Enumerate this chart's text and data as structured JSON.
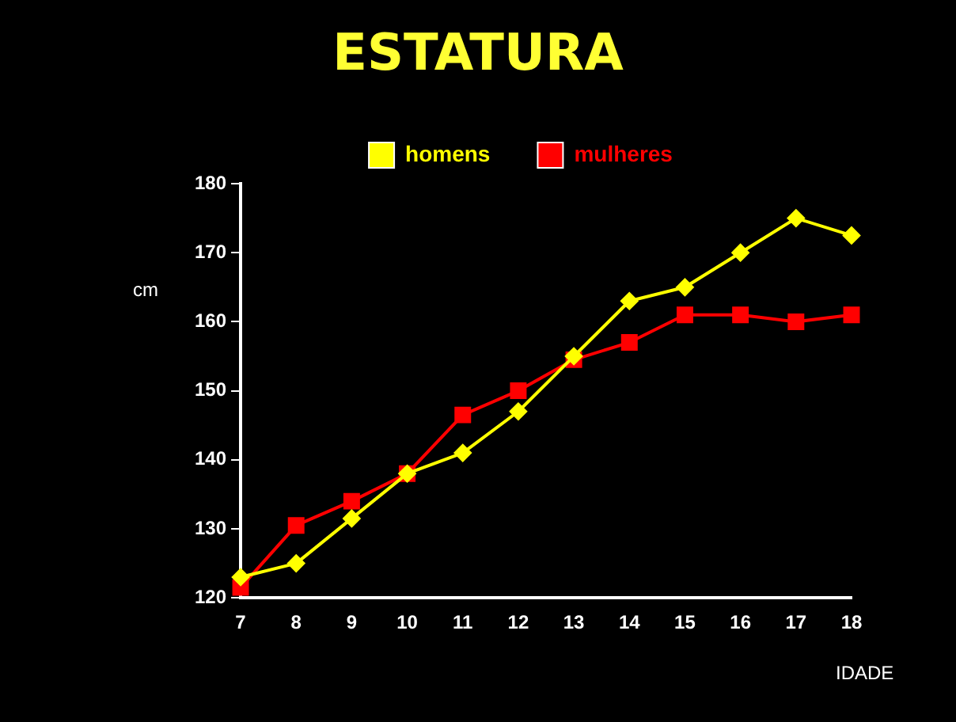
{
  "chart_data": {
    "type": "line",
    "title": "ESTATURA",
    "ylabel": "cm",
    "xlabel": "IDADE",
    "categories": [
      "7",
      "8",
      "9",
      "10",
      "11",
      "12",
      "13",
      "14",
      "15",
      "16",
      "17",
      "18"
    ],
    "series": [
      {
        "name": "homens",
        "color": "#ffff00",
        "marker": "diamond",
        "values": [
          123,
          125,
          131.5,
          138,
          141,
          147,
          155,
          163,
          165,
          170,
          175,
          172.5
        ]
      },
      {
        "name": "mulheres",
        "color": "#ff0000",
        "marker": "square",
        "values": [
          121.5,
          130.5,
          134,
          138,
          146.5,
          150,
          154.5,
          157,
          161,
          161,
          160,
          161
        ]
      }
    ],
    "ylim": [
      120,
      180
    ],
    "yticks": [
      120,
      130,
      140,
      150,
      160,
      170,
      180
    ],
    "grid": false,
    "legend": "top"
  }
}
